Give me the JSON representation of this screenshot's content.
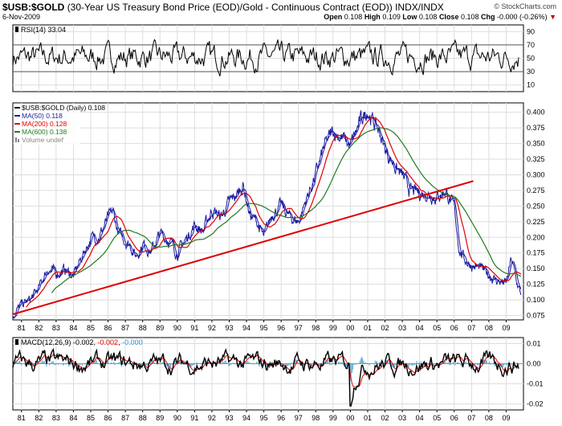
{
  "header": {
    "symbol": "$USB:$GOLD",
    "description": "(30-Year US Treasury Bond Price (EOD)/Gold - Continuous Contract (EOD))",
    "exchange": "INDX/INDX",
    "brand": "© StockCharts.com",
    "date": "6-Nov-2009",
    "open_label": "Open",
    "open": "0.108",
    "high_label": "High",
    "high": "0.109",
    "low_label": "Low",
    "low": "0.108",
    "close_label": "Close",
    "close": "0.108",
    "chg_label": "Chg",
    "chg": "-0.000 (-0.26%)",
    "chg_arrow": "▼"
  },
  "colors": {
    "price": "#1a1aa0",
    "ma50": "#1a1aa0",
    "ma200": "#e00000",
    "ma600": "#207a20",
    "trendline": "#e00000",
    "macd_signal": "#e00000",
    "macd_hist": "#3399cc"
  },
  "chart_data": [
    {
      "type": "line",
      "panel": "rsi",
      "legend": "RSI(14) 33.04",
      "y_ticks": [
        10,
        30,
        50,
        70,
        90
      ],
      "ylim": [
        0,
        100
      ],
      "overbought": 70,
      "oversold": 30
    },
    {
      "type": "line",
      "panel": "price",
      "legend": [
        {
          "name": "$USB:$GOLD (Daily) 0.108",
          "key": "price"
        },
        {
          "name": "MA(50) 0.118",
          "key": "ma50"
        },
        {
          "name": "MA(200) 0.128",
          "key": "ma200"
        },
        {
          "name": "MA(600) 0.138",
          "key": "ma600"
        },
        {
          "name": "Volume undef",
          "key": "volume"
        }
      ],
      "y_ticks": [
        "0.075",
        "0.100",
        "0.125",
        "0.150",
        "0.175",
        "0.200",
        "0.225",
        "0.250",
        "0.275",
        "0.300",
        "0.325",
        "0.350",
        "0.375",
        "0.400"
      ],
      "ylim": [
        0.068,
        0.415
      ],
      "xlim": [
        1980.5,
        2010.0
      ],
      "x_tick_labels": [
        "81",
        "82",
        "83",
        "84",
        "85",
        "86",
        "87",
        "88",
        "89",
        "90",
        "91",
        "92",
        "93",
        "94",
        "95",
        "96",
        "97",
        "98",
        "99",
        "00",
        "01",
        "02",
        "03",
        "04",
        "05",
        "06",
        "07",
        "08",
        "09"
      ],
      "price_series": {
        "x": [
          1980.5,
          1981.0,
          1981.5,
          1982.0,
          1982.5,
          1983.0,
          1983.5,
          1984.0,
          1984.5,
          1985.0,
          1985.5,
          1986.0,
          1986.3,
          1986.6,
          1987.0,
          1987.3,
          1987.6,
          1988.0,
          1988.5,
          1989.0,
          1989.5,
          1990.0,
          1990.5,
          1991.0,
          1991.5,
          1992.0,
          1992.5,
          1993.0,
          1993.5,
          1993.8,
          1994.2,
          1994.6,
          1995.0,
          1995.5,
          1996.0,
          1996.5,
          1997.0,
          1997.5,
          1998.0,
          1998.5,
          1999.0,
          1999.5,
          2000.0,
          2000.5,
          2001.0,
          2001.3,
          2001.7,
          2002.0,
          2002.5,
          2003.0,
          2003.5,
          2004.0,
          2004.5,
          2005.0,
          2005.5,
          2006.0,
          2006.3,
          2006.6,
          2007.0,
          2007.5,
          2008.0,
          2008.5,
          2008.8,
          2009.0,
          2009.3,
          2009.6,
          2009.85
        ],
        "y": [
          0.076,
          0.092,
          0.1,
          0.118,
          0.15,
          0.142,
          0.148,
          0.138,
          0.17,
          0.198,
          0.203,
          0.23,
          0.24,
          0.205,
          0.195,
          0.188,
          0.17,
          0.19,
          0.178,
          0.205,
          0.196,
          0.175,
          0.197,
          0.22,
          0.21,
          0.245,
          0.232,
          0.255,
          0.27,
          0.285,
          0.235,
          0.225,
          0.198,
          0.24,
          0.25,
          0.232,
          0.225,
          0.265,
          0.3,
          0.345,
          0.37,
          0.36,
          0.345,
          0.38,
          0.405,
          0.385,
          0.368,
          0.34,
          0.318,
          0.297,
          0.274,
          0.27,
          0.27,
          0.265,
          0.275,
          0.245,
          0.18,
          0.165,
          0.155,
          0.15,
          0.14,
          0.13,
          0.128,
          0.125,
          0.165,
          0.13,
          0.108
        ]
      },
      "trendline": {
        "x": [
          1980.5,
          2007.1
        ],
        "y": [
          0.077,
          0.29
        ]
      }
    },
    {
      "type": "line",
      "panel": "macd",
      "legend_main": "MACD(12,26,9) -0.002",
      "legend_signal": "-0.002",
      "legend_hist": "-0.000",
      "y_ticks": [
        "0.01",
        "0.00",
        "-0.01",
        "-0.02"
      ],
      "ylim": [
        -0.023,
        0.013
      ]
    }
  ]
}
